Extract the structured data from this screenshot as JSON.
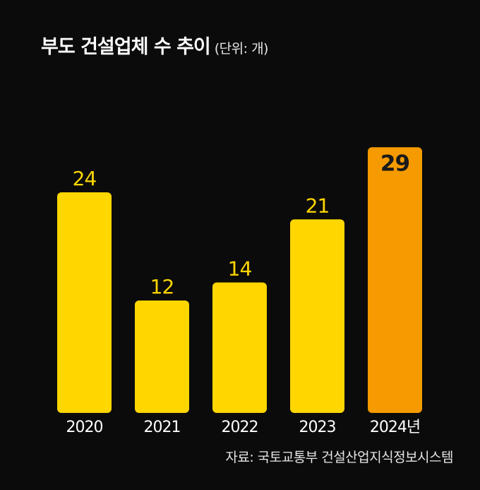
{
  "header": {
    "title": "부도 건설업체 수 추이",
    "unit": "(단위: 개)"
  },
  "source": "자료: 국토교통부 건설산업지식정보시스템",
  "colors": {
    "background": "#0b0b0b",
    "bar": "#ffd600",
    "bar_highlight": "#f59a00",
    "value_label": "#ffd600",
    "value_label_highlight": "#1a1a1a",
    "axis_label": "#ffffff"
  },
  "chart_data": {
    "type": "bar",
    "categories": [
      "2020",
      "2021",
      "2022",
      "2023",
      "2024년"
    ],
    "values": [
      24,
      12,
      14,
      21,
      29
    ],
    "highlight_index": 4,
    "title": "부도 건설업체 수 추이",
    "xlabel": "",
    "ylabel": "",
    "ylim": [
      0,
      30
    ],
    "grid": false,
    "legend": "none"
  }
}
